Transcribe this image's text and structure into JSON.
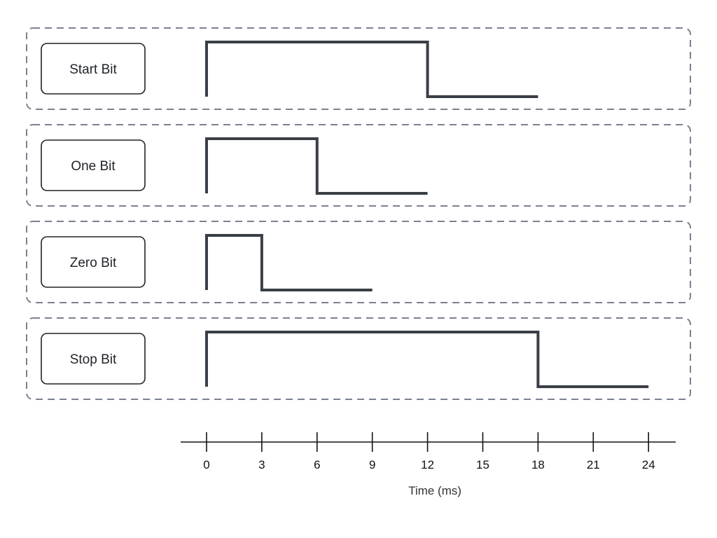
{
  "colors": {
    "frame": "#7a8190",
    "label_border": "#1f2329",
    "signal": "#3a3f47",
    "axis": "#111111",
    "background": "#ffffff"
  },
  "rows": [
    {
      "label": "Start Bit",
      "high_ms": 12,
      "total_ms": 18
    },
    {
      "label": "One Bit",
      "high_ms": 6,
      "total_ms": 12
    },
    {
      "label": "Zero Bit",
      "high_ms": 3,
      "total_ms": 9
    },
    {
      "label": "Stop Bit",
      "high_ms": 18,
      "total_ms": 24
    }
  ],
  "axis": {
    "ticks": [
      0,
      3,
      6,
      9,
      12,
      15,
      18,
      21,
      24
    ],
    "title": "Time (ms)"
  }
}
